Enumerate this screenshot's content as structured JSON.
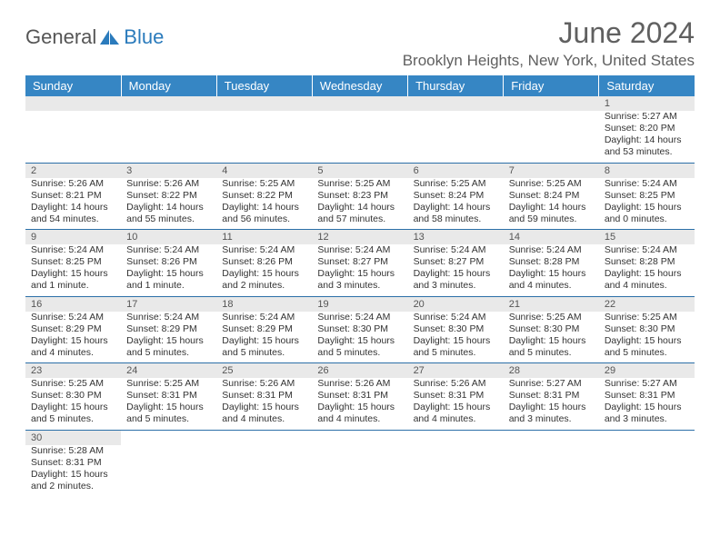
{
  "logo": {
    "text1": "General",
    "text2": "Blue"
  },
  "title": "June 2024",
  "location": "Brooklyn Heights, New York, United States",
  "colors": {
    "header_bg": "#3686c4",
    "header_text": "#ffffff",
    "daynum_bg": "#e9e9e9",
    "border": "#2b6fa8",
    "title_color": "#606060"
  },
  "day_labels": [
    "Sunday",
    "Monday",
    "Tuesday",
    "Wednesday",
    "Thursday",
    "Friday",
    "Saturday"
  ],
  "weeks": [
    [
      null,
      null,
      null,
      null,
      null,
      null,
      {
        "n": "1",
        "sr": "Sunrise: 5:27 AM",
        "ss": "Sunset: 8:20 PM",
        "dl": "Daylight: 14 hours and 53 minutes."
      }
    ],
    [
      {
        "n": "2",
        "sr": "Sunrise: 5:26 AM",
        "ss": "Sunset: 8:21 PM",
        "dl": "Daylight: 14 hours and 54 minutes."
      },
      {
        "n": "3",
        "sr": "Sunrise: 5:26 AM",
        "ss": "Sunset: 8:22 PM",
        "dl": "Daylight: 14 hours and 55 minutes."
      },
      {
        "n": "4",
        "sr": "Sunrise: 5:25 AM",
        "ss": "Sunset: 8:22 PM",
        "dl": "Daylight: 14 hours and 56 minutes."
      },
      {
        "n": "5",
        "sr": "Sunrise: 5:25 AM",
        "ss": "Sunset: 8:23 PM",
        "dl": "Daylight: 14 hours and 57 minutes."
      },
      {
        "n": "6",
        "sr": "Sunrise: 5:25 AM",
        "ss": "Sunset: 8:24 PM",
        "dl": "Daylight: 14 hours and 58 minutes."
      },
      {
        "n": "7",
        "sr": "Sunrise: 5:25 AM",
        "ss": "Sunset: 8:24 PM",
        "dl": "Daylight: 14 hours and 59 minutes."
      },
      {
        "n": "8",
        "sr": "Sunrise: 5:24 AM",
        "ss": "Sunset: 8:25 PM",
        "dl": "Daylight: 15 hours and 0 minutes."
      }
    ],
    [
      {
        "n": "9",
        "sr": "Sunrise: 5:24 AM",
        "ss": "Sunset: 8:25 PM",
        "dl": "Daylight: 15 hours and 1 minute."
      },
      {
        "n": "10",
        "sr": "Sunrise: 5:24 AM",
        "ss": "Sunset: 8:26 PM",
        "dl": "Daylight: 15 hours and 1 minute."
      },
      {
        "n": "11",
        "sr": "Sunrise: 5:24 AM",
        "ss": "Sunset: 8:26 PM",
        "dl": "Daylight: 15 hours and 2 minutes."
      },
      {
        "n": "12",
        "sr": "Sunrise: 5:24 AM",
        "ss": "Sunset: 8:27 PM",
        "dl": "Daylight: 15 hours and 3 minutes."
      },
      {
        "n": "13",
        "sr": "Sunrise: 5:24 AM",
        "ss": "Sunset: 8:27 PM",
        "dl": "Daylight: 15 hours and 3 minutes."
      },
      {
        "n": "14",
        "sr": "Sunrise: 5:24 AM",
        "ss": "Sunset: 8:28 PM",
        "dl": "Daylight: 15 hours and 4 minutes."
      },
      {
        "n": "15",
        "sr": "Sunrise: 5:24 AM",
        "ss": "Sunset: 8:28 PM",
        "dl": "Daylight: 15 hours and 4 minutes."
      }
    ],
    [
      {
        "n": "16",
        "sr": "Sunrise: 5:24 AM",
        "ss": "Sunset: 8:29 PM",
        "dl": "Daylight: 15 hours and 4 minutes."
      },
      {
        "n": "17",
        "sr": "Sunrise: 5:24 AM",
        "ss": "Sunset: 8:29 PM",
        "dl": "Daylight: 15 hours and 5 minutes."
      },
      {
        "n": "18",
        "sr": "Sunrise: 5:24 AM",
        "ss": "Sunset: 8:29 PM",
        "dl": "Daylight: 15 hours and 5 minutes."
      },
      {
        "n": "19",
        "sr": "Sunrise: 5:24 AM",
        "ss": "Sunset: 8:30 PM",
        "dl": "Daylight: 15 hours and 5 minutes."
      },
      {
        "n": "20",
        "sr": "Sunrise: 5:24 AM",
        "ss": "Sunset: 8:30 PM",
        "dl": "Daylight: 15 hours and 5 minutes."
      },
      {
        "n": "21",
        "sr": "Sunrise: 5:25 AM",
        "ss": "Sunset: 8:30 PM",
        "dl": "Daylight: 15 hours and 5 minutes."
      },
      {
        "n": "22",
        "sr": "Sunrise: 5:25 AM",
        "ss": "Sunset: 8:30 PM",
        "dl": "Daylight: 15 hours and 5 minutes."
      }
    ],
    [
      {
        "n": "23",
        "sr": "Sunrise: 5:25 AM",
        "ss": "Sunset: 8:30 PM",
        "dl": "Daylight: 15 hours and 5 minutes."
      },
      {
        "n": "24",
        "sr": "Sunrise: 5:25 AM",
        "ss": "Sunset: 8:31 PM",
        "dl": "Daylight: 15 hours and 5 minutes."
      },
      {
        "n": "25",
        "sr": "Sunrise: 5:26 AM",
        "ss": "Sunset: 8:31 PM",
        "dl": "Daylight: 15 hours and 4 minutes."
      },
      {
        "n": "26",
        "sr": "Sunrise: 5:26 AM",
        "ss": "Sunset: 8:31 PM",
        "dl": "Daylight: 15 hours and 4 minutes."
      },
      {
        "n": "27",
        "sr": "Sunrise: 5:26 AM",
        "ss": "Sunset: 8:31 PM",
        "dl": "Daylight: 15 hours and 4 minutes."
      },
      {
        "n": "28",
        "sr": "Sunrise: 5:27 AM",
        "ss": "Sunset: 8:31 PM",
        "dl": "Daylight: 15 hours and 3 minutes."
      },
      {
        "n": "29",
        "sr": "Sunrise: 5:27 AM",
        "ss": "Sunset: 8:31 PM",
        "dl": "Daylight: 15 hours and 3 minutes."
      }
    ],
    [
      {
        "n": "30",
        "sr": "Sunrise: 5:28 AM",
        "ss": "Sunset: 8:31 PM",
        "dl": "Daylight: 15 hours and 2 minutes."
      },
      null,
      null,
      null,
      null,
      null,
      null
    ]
  ]
}
